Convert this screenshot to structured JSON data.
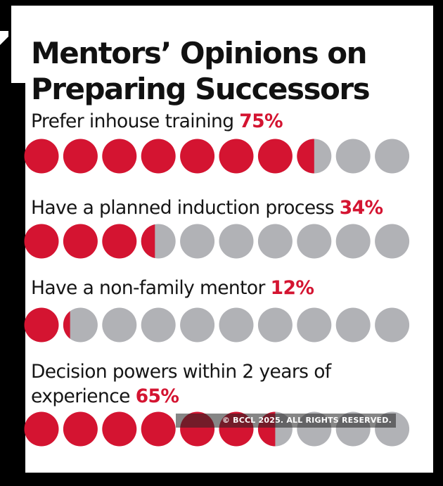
{
  "chart_data": {
    "type": "pictogram",
    "title_lines": [
      "Mentors’ Opinions on",
      "Preparing Successors"
    ],
    "units_per_row": 10,
    "colors": {
      "filled": "#d41431",
      "empty": "#b1b2b6",
      "accent": "#d41431"
    },
    "items": [
      {
        "label_lines": [
          "Prefer inhouse training "
        ],
        "value_text": "75%",
        "value": 75
      },
      {
        "label_lines": [
          "Have a planned induction process "
        ],
        "value_text": "34%",
        "value": 34
      },
      {
        "label_lines": [
          "Have a non-family mentor "
        ],
        "value_text": "12%",
        "value": 12
      },
      {
        "label_lines": [
          "Decision powers within 2 years of",
          "experience "
        ],
        "value_text": "65%",
        "value": 65
      }
    ]
  },
  "watermark": "© BCCL 2025. ALL RIGHTS RESERVED."
}
